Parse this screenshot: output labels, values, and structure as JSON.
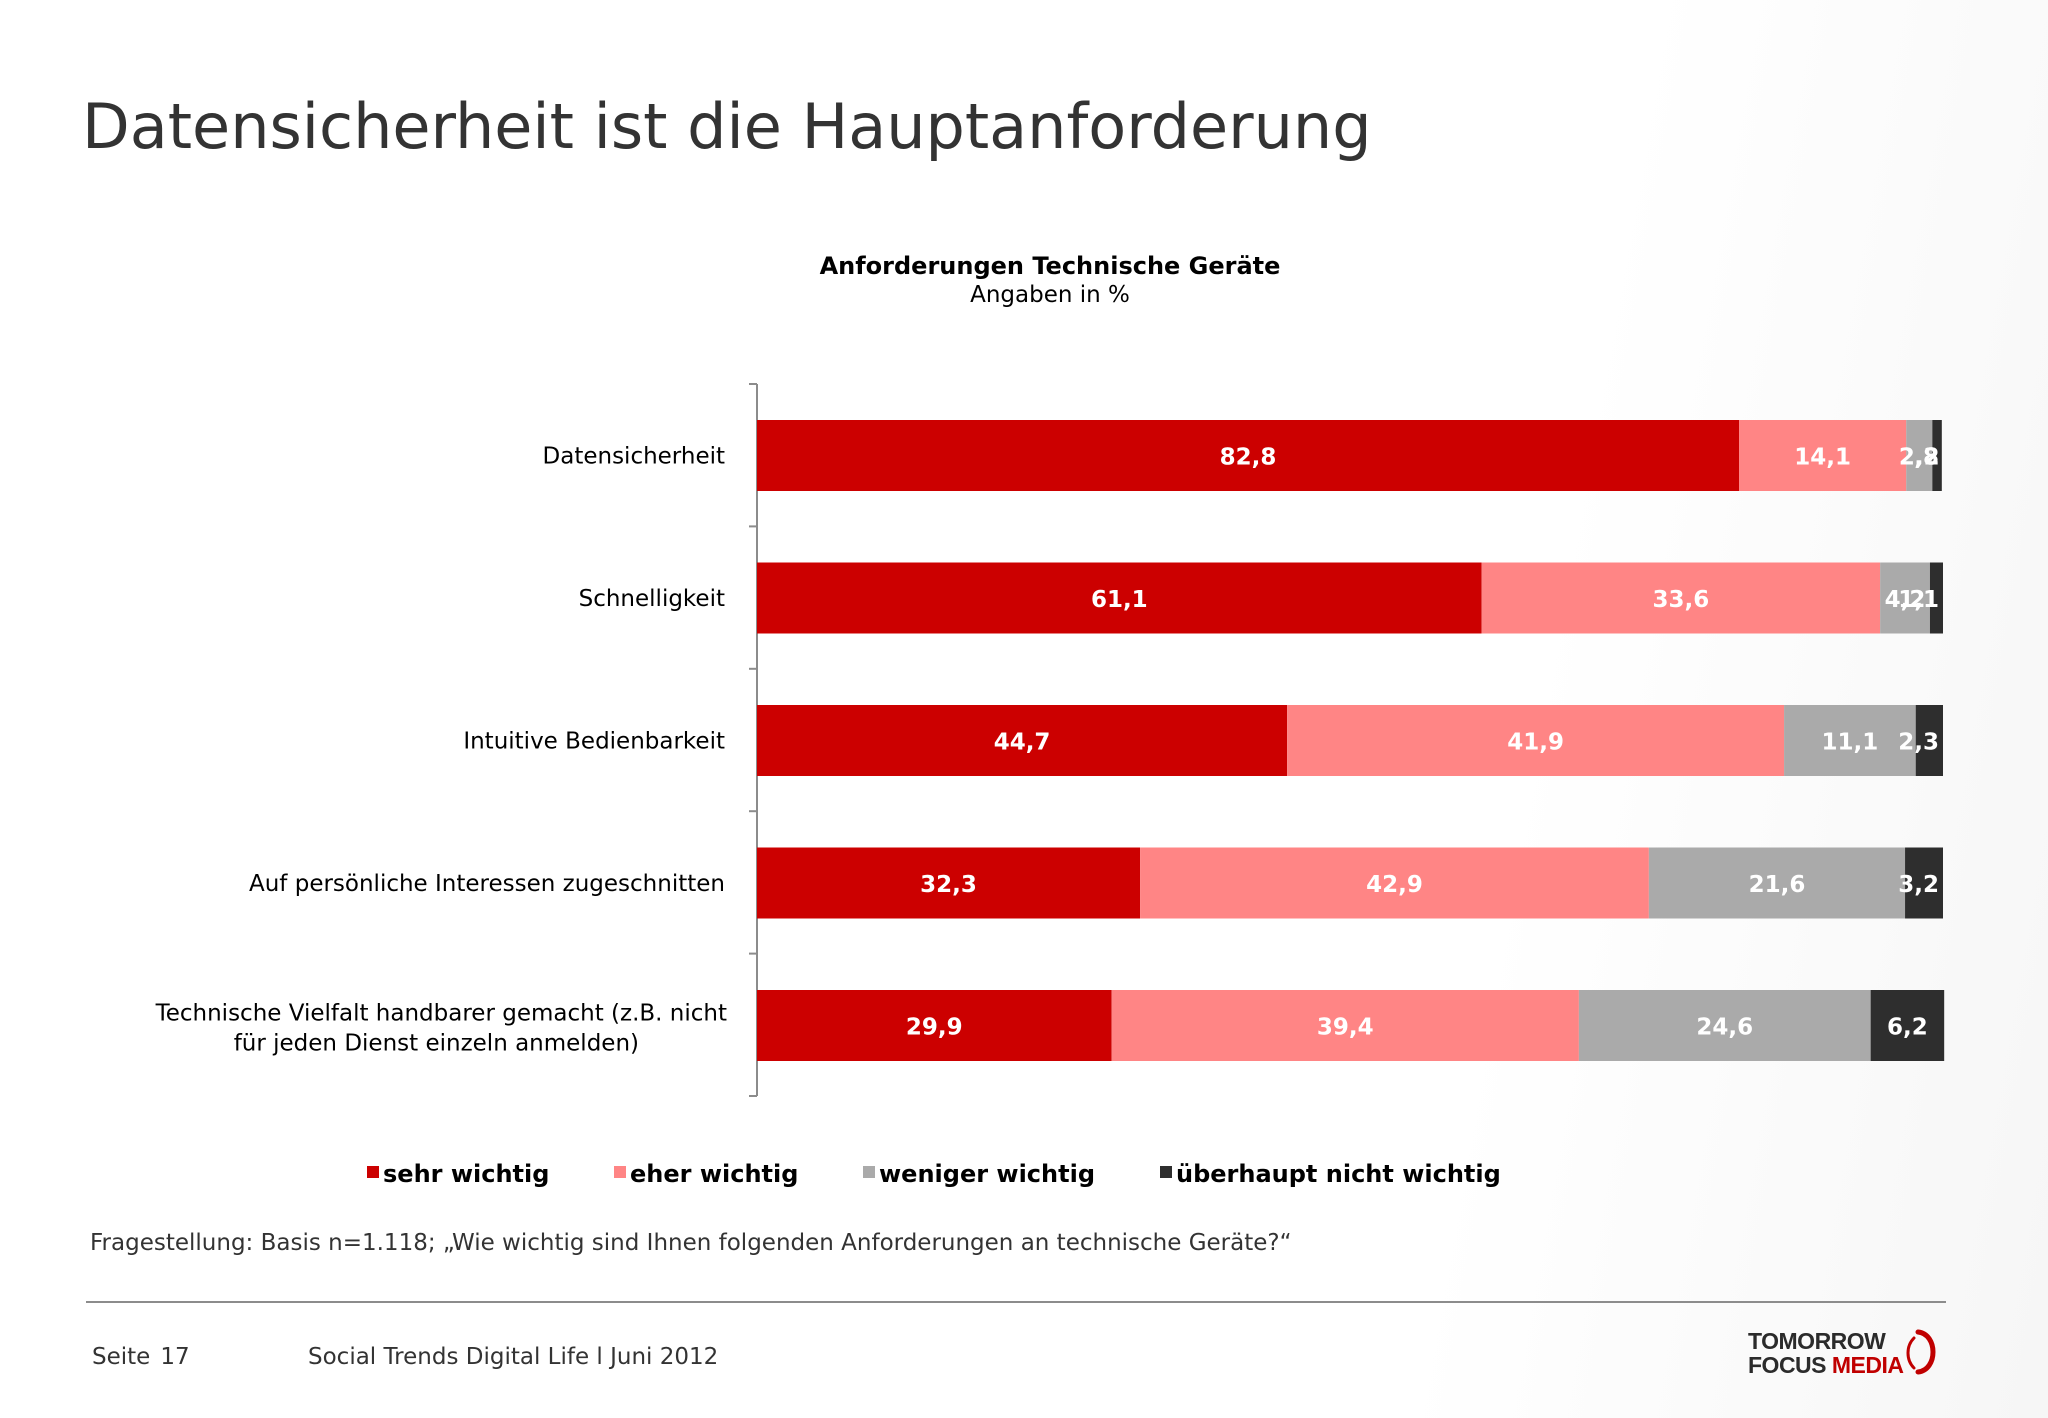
{
  "title": "Datensicherheit ist die Hauptanforderung",
  "chart_data": {
    "type": "bar",
    "orientation": "horizontal",
    "stacked": true,
    "title": "Anforderungen Technische Geräte",
    "subtitle": "Angaben in %",
    "categories": [
      "Datensicherheit",
      "Schnelligkeit",
      "Intuitive Bedienbarkeit",
      "Auf persönliche Interessen zugeschnitten",
      "Technische Vielfalt handbarer gemacht (z.B. nicht für jeden Dienst einzeln anmelden)"
    ],
    "series": [
      {
        "name": "sehr wichtig",
        "color": "#cc0000",
        "values": [
          82.8,
          61.1,
          44.7,
          32.3,
          29.9
        ],
        "labels": [
          "82,8",
          "61,1",
          "44,7",
          "32,3",
          "29,9"
        ]
      },
      {
        "name": "eher wichtig",
        "color": "#ff8585",
        "values": [
          14.1,
          33.6,
          41.9,
          42.9,
          39.4
        ],
        "labels": [
          "14,1",
          "33,6",
          "41,9",
          "42,9",
          "39,4"
        ]
      },
      {
        "name": "weniger wichtig",
        "color": "#aaaaaa",
        "values": [
          2.2,
          4.2,
          11.1,
          21.6,
          24.6
        ],
        "labels": [
          "2,2",
          "4,2",
          "11,1",
          "21,6",
          "24,6"
        ]
      },
      {
        "name": "überhaupt nicht wichtig",
        "color": "#2e2e2e",
        "values": [
          0.8,
          1.1,
          2.3,
          3.2,
          6.2
        ],
        "labels": [
          ",8",
          "1,1",
          "2,3",
          "3,2",
          "6,2"
        ]
      }
    ],
    "xlim": [
      0,
      100
    ],
    "legend_position": "bottom"
  },
  "question": "Fragestellung: Basis n=1.118; „Wie wichtig sind Ihnen folgenden Anforderungen an technische Geräte?“",
  "footer": {
    "page_label": "Seite",
    "page_number": "17",
    "source": "Social Trends Digital Life l Juni 2012"
  },
  "logo": {
    "line1": "TOMORROW",
    "line2a": "FOCUS",
    "line2b": "MEDIA"
  }
}
